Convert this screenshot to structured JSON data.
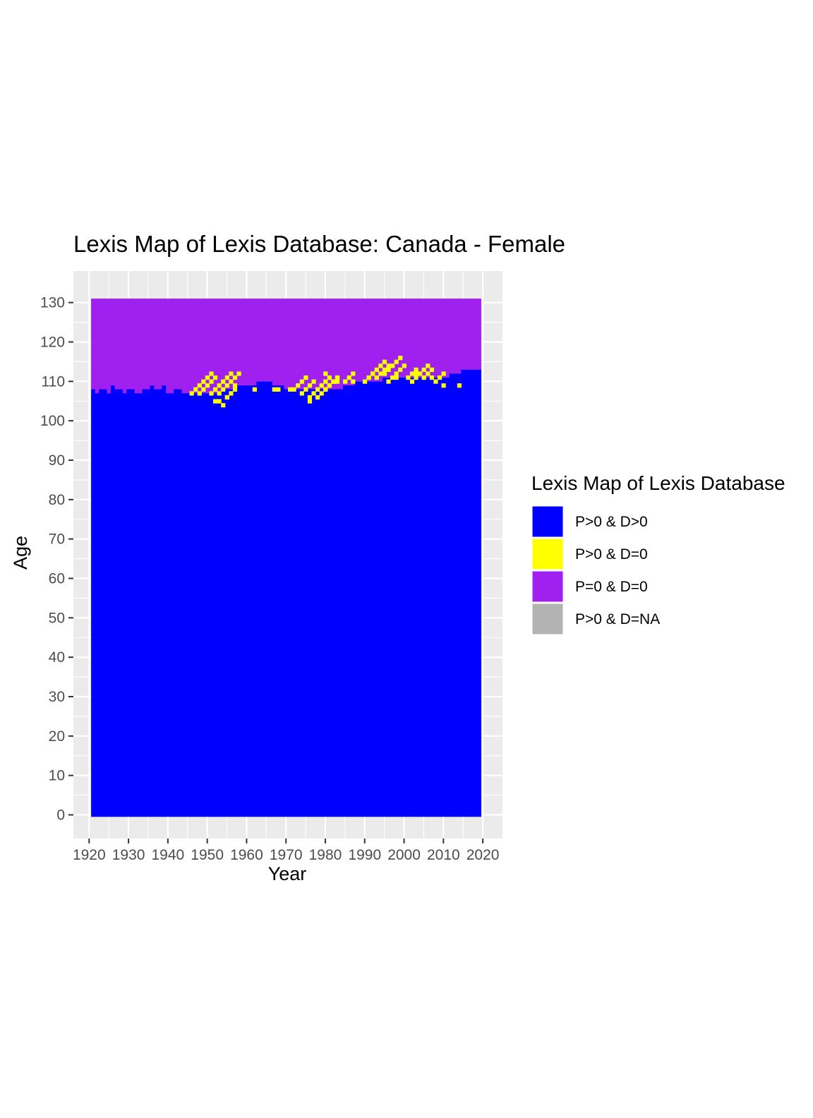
{
  "chart_data": {
    "type": "heatmap",
    "title": "Lexis Map of Lexis Database: Canada - Female",
    "xlabel": "Year",
    "ylabel": "Age",
    "xlim": [
      1916,
      2025
    ],
    "ylim": [
      -6,
      138
    ],
    "x_ticks": [
      1920,
      1930,
      1940,
      1950,
      1960,
      1970,
      1980,
      1990,
      2000,
      2010,
      2020
    ],
    "y_ticks": [
      0,
      10,
      20,
      30,
      40,
      50,
      60,
      70,
      80,
      90,
      100,
      110,
      120,
      130
    ],
    "x_range": [
      1921,
      2019
    ],
    "age_range": [
      0,
      131
    ],
    "grid": true,
    "legend": {
      "title": "Lexis Map of Lexis Database",
      "position": "right",
      "entries": [
        {
          "label": "P>0 & D>0",
          "color": "#0000FF"
        },
        {
          "label": "P>0 & D=0",
          "color": "#FFFF00"
        },
        {
          "label": "P=0 & D=0",
          "color": "#A020F0"
        },
        {
          "label": "P>0 & D=NA",
          "color": "#B3B3B3"
        }
      ]
    },
    "max_age_with_deaths_by_year": [
      {
        "year": 1921,
        "age": 108
      },
      {
        "year": 1922,
        "age": 107
      },
      {
        "year": 1923,
        "age": 108
      },
      {
        "year": 1925,
        "age": 107
      },
      {
        "year": 1926,
        "age": 109
      },
      {
        "year": 1927,
        "age": 108
      },
      {
        "year": 1929,
        "age": 107
      },
      {
        "year": 1930,
        "age": 108
      },
      {
        "year": 1932,
        "age": 107
      },
      {
        "year": 1934,
        "age": 108
      },
      {
        "year": 1936,
        "age": 109
      },
      {
        "year": 1937,
        "age": 108
      },
      {
        "year": 1939,
        "age": 109
      },
      {
        "year": 1940,
        "age": 107
      },
      {
        "year": 1942,
        "age": 108
      },
      {
        "year": 1944,
        "age": 107
      },
      {
        "year": 1950,
        "age": 107
      },
      {
        "year": 1954,
        "age": 108
      },
      {
        "year": 1958,
        "age": 109
      },
      {
        "year": 1960,
        "age": 109
      },
      {
        "year": 1963,
        "age": 110
      },
      {
        "year": 1967,
        "age": 109
      },
      {
        "year": 1970,
        "age": 108
      },
      {
        "year": 1975,
        "age": 108
      },
      {
        "year": 1980,
        "age": 108
      },
      {
        "year": 1985,
        "age": 109
      },
      {
        "year": 1988,
        "age": 110
      },
      {
        "year": 1992,
        "age": 110
      },
      {
        "year": 1995,
        "age": 111
      },
      {
        "year": 2000,
        "age": 111
      },
      {
        "year": 2005,
        "age": 111
      },
      {
        "year": 2010,
        "age": 111
      },
      {
        "year": 2012,
        "age": 112
      },
      {
        "year": 2015,
        "age": 113
      },
      {
        "year": 2019,
        "age": 113
      }
    ],
    "zero_death_streaks": [
      {
        "start_year": 1946,
        "start_age": 107,
        "length": 6
      },
      {
        "start_year": 1948,
        "start_age": 107,
        "length": 5
      },
      {
        "start_year": 1951,
        "start_age": 107,
        "length": 6
      },
      {
        "start_year": 1953,
        "start_age": 107,
        "length": 6
      },
      {
        "start_year": 1955,
        "start_age": 106,
        "length": 3
      },
      {
        "start_year": 1972,
        "start_age": 108,
        "length": 4
      },
      {
        "start_year": 1974,
        "start_age": 107,
        "length": 4
      },
      {
        "start_year": 1976,
        "start_age": 106,
        "length": 6
      },
      {
        "start_year": 1978,
        "start_age": 106,
        "length": 6
      },
      {
        "start_year": 1980,
        "start_age": 108,
        "length": 4
      },
      {
        "start_year": 1982,
        "start_age": 110,
        "length": 2
      },
      {
        "start_year": 1985,
        "start_age": 110,
        "length": 3
      },
      {
        "start_year": 1990,
        "start_age": 110,
        "length": 3
      },
      {
        "start_year": 1991,
        "start_age": 111,
        "length": 5
      },
      {
        "start_year": 1993,
        "start_age": 111,
        "length": 4
      },
      {
        "start_year": 1995,
        "start_age": 112,
        "length": 5
      },
      {
        "start_year": 1996,
        "start_age": 110,
        "length": 5
      },
      {
        "start_year": 2001,
        "start_age": 111,
        "length": 3
      },
      {
        "start_year": 2002,
        "start_age": 110,
        "length": 5
      },
      {
        "start_year": 2005,
        "start_age": 111,
        "length": 3
      },
      {
        "start_year": 2008,
        "start_age": 110,
        "length": 3
      }
    ],
    "zero_death_cells": [
      {
        "year": 1952,
        "age": 105
      },
      {
        "year": 1953,
        "age": 105
      },
      {
        "year": 1954,
        "age": 104
      },
      {
        "year": 1955,
        "age": 106
      },
      {
        "year": 1957,
        "age": 109
      },
      {
        "year": 1962,
        "age": 108
      },
      {
        "year": 1967,
        "age": 108
      },
      {
        "year": 1968,
        "age": 108
      },
      {
        "year": 1971,
        "age": 108
      },
      {
        "year": 1976,
        "age": 105
      },
      {
        "year": 1980,
        "age": 112
      },
      {
        "year": 1983,
        "age": 110
      },
      {
        "year": 1987,
        "age": 110
      },
      {
        "year": 1998,
        "age": 111
      },
      {
        "year": 2003,
        "age": 112
      },
      {
        "year": 2007,
        "age": 111
      },
      {
        "year": 2010,
        "age": 109
      },
      {
        "year": 2014,
        "age": 109
      }
    ]
  }
}
